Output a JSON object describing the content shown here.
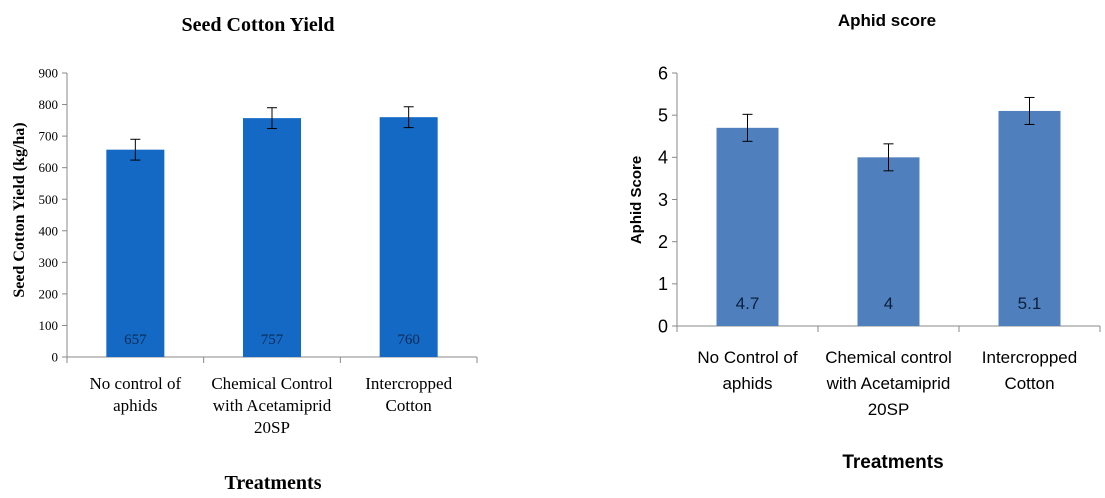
{
  "chart_data": [
    {
      "type": "bar",
      "title": "Seed Cotton Yield",
      "xlabel": "Treatments",
      "ylabel": "Seed Cotton Yield (kg/ha)",
      "categories": [
        [
          "No control of",
          "aphids"
        ],
        [
          "Chemical Control",
          "with Acetamiprid",
          "20SP"
        ],
        [
          "Intercropped",
          "Cotton"
        ]
      ],
      "values": [
        657,
        757,
        760
      ],
      "value_labels": [
        "657",
        "757",
        "760"
      ],
      "error": [
        33,
        33,
        33
      ],
      "ylim": [
        0,
        900
      ],
      "yticks": [
        0,
        100,
        200,
        300,
        400,
        500,
        600,
        700,
        800,
        900
      ],
      "grid": false,
      "bar_color": "#1469c4"
    },
    {
      "type": "bar",
      "title": "Aphid score",
      "xlabel": "Treatments",
      "ylabel": "Aphid Score",
      "categories": [
        [
          "No Control of",
          "aphids"
        ],
        [
          "Chemical control",
          "with Acetamiprid",
          "20SP"
        ],
        [
          "Intercropped",
          "Cotton"
        ]
      ],
      "values": [
        4.7,
        4,
        5.1
      ],
      "value_labels": [
        "4.7",
        "4",
        "5.1"
      ],
      "error": [
        0.32,
        0.32,
        0.32
      ],
      "ylim": [
        0,
        6
      ],
      "yticks": [
        0,
        1,
        2,
        3,
        4,
        5,
        6
      ],
      "grid": false,
      "bar_color": "#4f80bd"
    }
  ]
}
